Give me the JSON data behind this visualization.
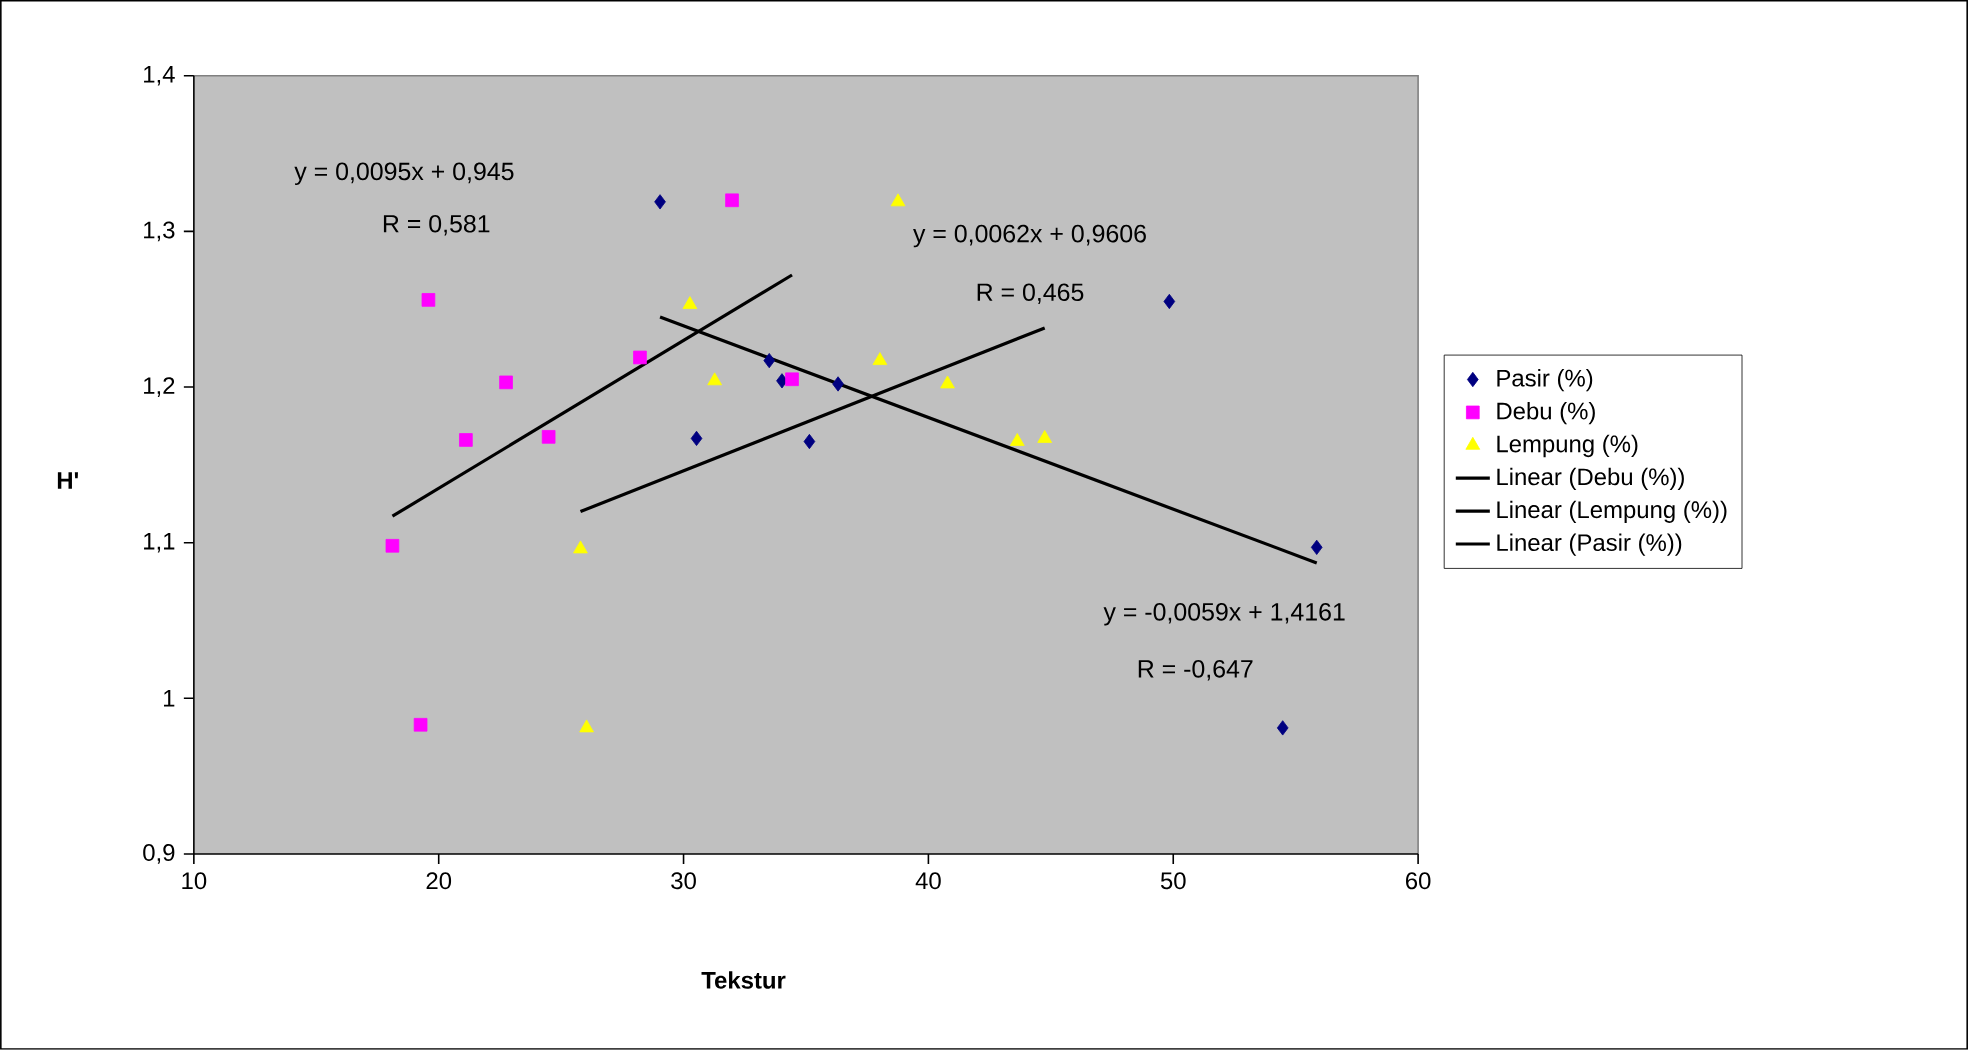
{
  "chart_data": {
    "type": "scatter",
    "xlabel": "Tekstur",
    "ylabel": "H'",
    "xlim": [
      10,
      60
    ],
    "xticks": [
      10,
      20,
      30,
      40,
      50,
      60
    ],
    "ylim": [
      0.9,
      1.4
    ],
    "yticks": [
      {
        "value": 0.9,
        "label": "0,9"
      },
      1,
      {
        "value": 1.1,
        "label": "1,1"
      },
      {
        "value": 1.2,
        "label": "1,2"
      },
      {
        "value": 1.3,
        "label": "1,3"
      },
      {
        "value": 1.4,
        "label": "1,4"
      }
    ],
    "grid": false,
    "legend": "right",
    "series": [
      {
        "name": "Pasir (%)",
        "color": "#000080",
        "marker": "diamond",
        "x": [
          29.04,
          30.53,
          33.5,
          34.02,
          35.14,
          36.31,
          49.84,
          55.86,
          54.47
        ],
        "values": [
          1.319,
          1.167,
          1.217,
          1.204,
          1.165,
          1.202,
          1.255,
          1.097,
          0.981
        ]
      },
      {
        "name": "Debu (%)",
        "color": "#ff00ff",
        "marker": "square",
        "x": [
          31.98,
          19.58,
          22.75,
          21.11,
          24.49,
          28.22,
          18.11,
          19.26,
          34.43
        ],
        "values": [
          1.32,
          1.256,
          1.203,
          1.166,
          1.168,
          1.219,
          1.098,
          0.983,
          1.205
        ]
      },
      {
        "name": "Lempung (%)",
        "color": "#ffff00",
        "marker": "triangle",
        "x": [
          30.26,
          31.27,
          25.79,
          26.04,
          38.76,
          38.02,
          40.78,
          43.63,
          44.75
        ],
        "values": [
          1.253,
          1.204,
          1.096,
          0.981,
          1.319,
          1.217,
          1.202,
          1.165,
          1.167
        ]
      },
      {
        "name": "Linear (Debu (%))",
        "type": "line",
        "color": "#000000",
        "line_style": "solid",
        "x": [
          18.11,
          34.43
        ],
        "values": [
          1.117,
          1.272
        ]
      },
      {
        "name": "Linear (Lempung (%))",
        "type": "line",
        "color": "#000000",
        "line_style": "solid",
        "x": [
          25.79,
          44.75
        ],
        "values": [
          1.12,
          1.238
        ]
      },
      {
        "name": "Linear (Pasir (%))",
        "type": "line",
        "color": "#000000",
        "line_style": "solid",
        "x": [
          29.04,
          55.86
        ],
        "values": [
          1.245,
          1.087
        ]
      }
    ],
    "annotations": [
      "y = 0,0095x + 0,945",
      "R  = 0,581",
      "y = 0,0062x + 0,9606",
      "R  = 0,465",
      "y = -0,0059x + 1,4161",
      "R  = -0,647"
    ]
  }
}
